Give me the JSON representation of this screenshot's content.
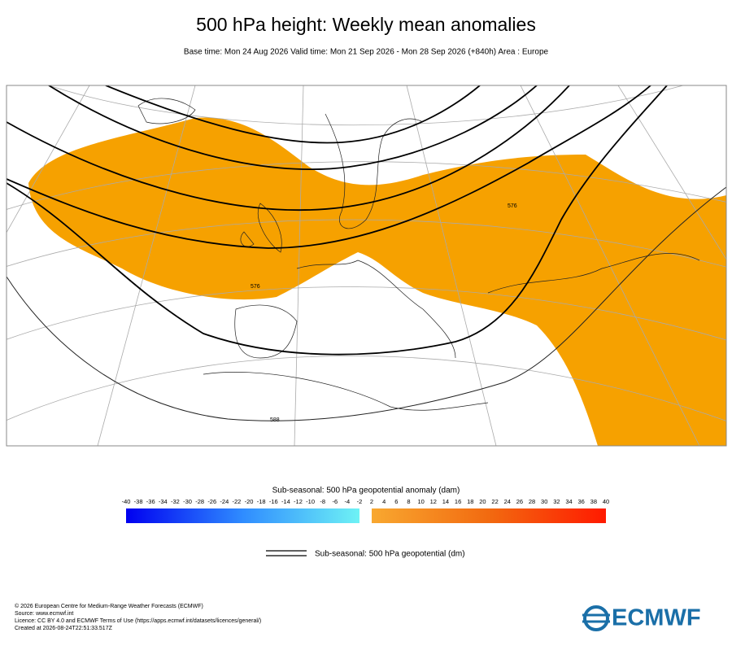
{
  "title": "500 hPa height: Weekly mean anomalies",
  "subtitle": "Base time: Mon 24 Aug 2026 Valid time: Mon 21 Sep 2026 - Mon 28 Sep 2026 (+840h) Area : Europe",
  "map": {
    "contour_labels": [
      "576",
      "576",
      "588"
    ]
  },
  "colorbar": {
    "title": "Sub-seasonal: 500 hPa geopotential anomaly (dam)",
    "ticks": [
      -40,
      -38,
      -36,
      -34,
      -32,
      -30,
      -28,
      -26,
      -24,
      -22,
      -20,
      -18,
      -16,
      -14,
      -12,
      -10,
      -8,
      -6,
      -4,
      -2,
      2,
      4,
      6,
      8,
      10,
      12,
      14,
      16,
      18,
      20,
      22,
      24,
      26,
      28,
      30,
      32,
      34,
      36,
      38,
      40
    ]
  },
  "legend": {
    "label": "Sub-seasonal: 500 hPa geopotential (dm)"
  },
  "footer": {
    "lines": [
      "© 2026 European Centre for Medium-Range Weather Forecasts (ECMWF)",
      "Source: www.ecmwf.int",
      "Licence: CC BY 4.0 and ECMWF Terms of Use (https://apps.ecmwf.int/datasets/licences/general/)",
      "Created at 2026-08-24T22:51:33.517Z"
    ]
  },
  "logo": "ECMWF"
}
